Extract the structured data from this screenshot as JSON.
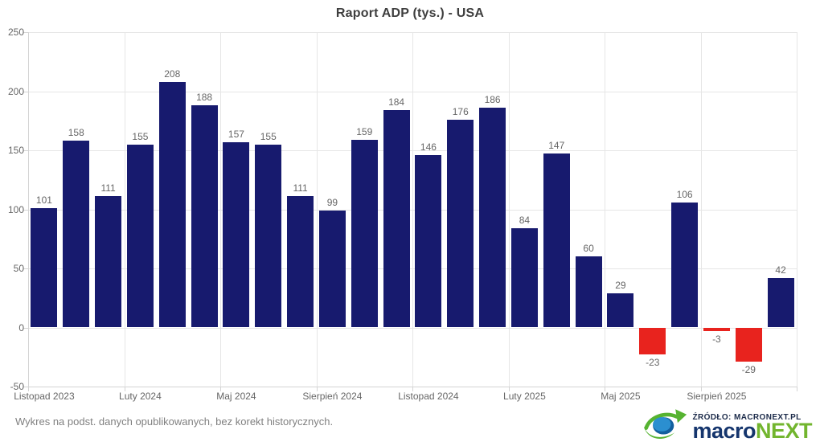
{
  "title": "Raport ADP (tys.) - USA",
  "footnote": "Wykres na podst. danych opublikowanych, bez korekt historycznych.",
  "source": {
    "line": "ŹRÓDŁO: MACRONEXT.PL",
    "brand_primary": "macro",
    "brand_secondary": "NEXT"
  },
  "icons": {
    "brand": "macronext-swirl-icon"
  },
  "colors": {
    "bar_positive": "#171a6e",
    "bar_negative": "#e8231e",
    "grid": "#e6e6e6",
    "axis": "#d4d4d4",
    "tick_label": "#666666",
    "title": "#3e3e3e",
    "brand_navy": "#15356d",
    "brand_green": "#72b52e"
  },
  "chart_data": {
    "type": "bar",
    "title": "Raport ADP (tys.) - USA",
    "values": [
      101,
      158,
      111,
      155,
      208,
      188,
      157,
      155,
      111,
      99,
      159,
      184,
      146,
      176,
      186,
      84,
      147,
      60,
      29,
      -23,
      106,
      -3,
      -29,
      42
    ],
    "x_tick_labels": [
      {
        "index": 0,
        "label": "Listopad 2023"
      },
      {
        "index": 3,
        "label": "Luty 2024"
      },
      {
        "index": 6,
        "label": "Maj 2024"
      },
      {
        "index": 9,
        "label": "Sierpień 2024"
      },
      {
        "index": 12,
        "label": "Listopad 2024"
      },
      {
        "index": 15,
        "label": "Luty 2025"
      },
      {
        "index": 18,
        "label": "Maj 2025"
      },
      {
        "index": 21,
        "label": "Sierpień 2025"
      }
    ],
    "y_ticks": [
      250,
      200,
      150,
      100,
      50,
      0,
      -50
    ],
    "ylim": [
      -50,
      250
    ],
    "xlabel": "",
    "ylabel": "",
    "grid": true,
    "legend": "none",
    "value_labels": true
  }
}
